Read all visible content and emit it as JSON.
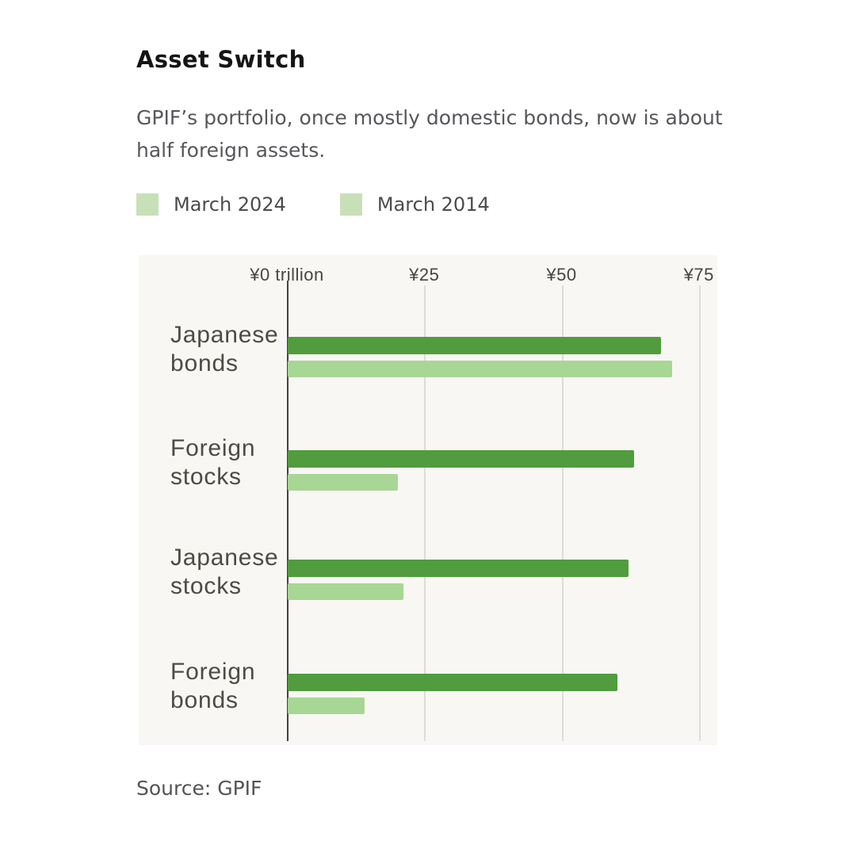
{
  "header": {
    "title": "Asset Switch",
    "subtitle": "GPIF’s portfolio, once mostly domestic bonds, now is about half foreign assets."
  },
  "legend": {
    "items": [
      {
        "label": "March 2024",
        "swatch_color": "#c8e0b8"
      },
      {
        "label": "March 2014",
        "swatch_color": "#c8e0b8"
      }
    ]
  },
  "chart_data": {
    "type": "bar",
    "orientation": "horizontal",
    "title": "Asset Switch",
    "unit": "yen trillion",
    "categories": [
      "Japanese bonds",
      "Foreign stocks",
      "Japanese stocks",
      "Foreign bonds"
    ],
    "category_label_lines": [
      [
        "Japanese",
        "bonds"
      ],
      [
        "Foreign",
        "stocks"
      ],
      [
        "Japanese",
        "stocks"
      ],
      [
        "Foreign",
        "bonds"
      ]
    ],
    "series": [
      {
        "name": "March 2024",
        "color": "#519c3e",
        "values": [
          68,
          63,
          62,
          60
        ]
      },
      {
        "name": "March 2014",
        "color": "#a8d694",
        "values": [
          70,
          20,
          21,
          14
        ]
      }
    ],
    "x_ticks": [
      {
        "value": 0,
        "label": "¥0 trillion"
      },
      {
        "value": 25,
        "label": "¥25"
      },
      {
        "value": 50,
        "label": "¥50"
      },
      {
        "value": 75,
        "label": "¥75"
      }
    ],
    "xlim": [
      0,
      78.5
    ],
    "grid": true,
    "legend_position": "top"
  },
  "source": "Source: GPIF",
  "colors": {
    "bar_dark_green": "#519c3e",
    "bar_light_green": "#a8d694",
    "legend_swatch_green": "#c8e0b8",
    "axis_line": "#424242",
    "gridline": "#dddcd8",
    "panel_background": "#f8f7f4",
    "page_background": "#ffffff"
  }
}
